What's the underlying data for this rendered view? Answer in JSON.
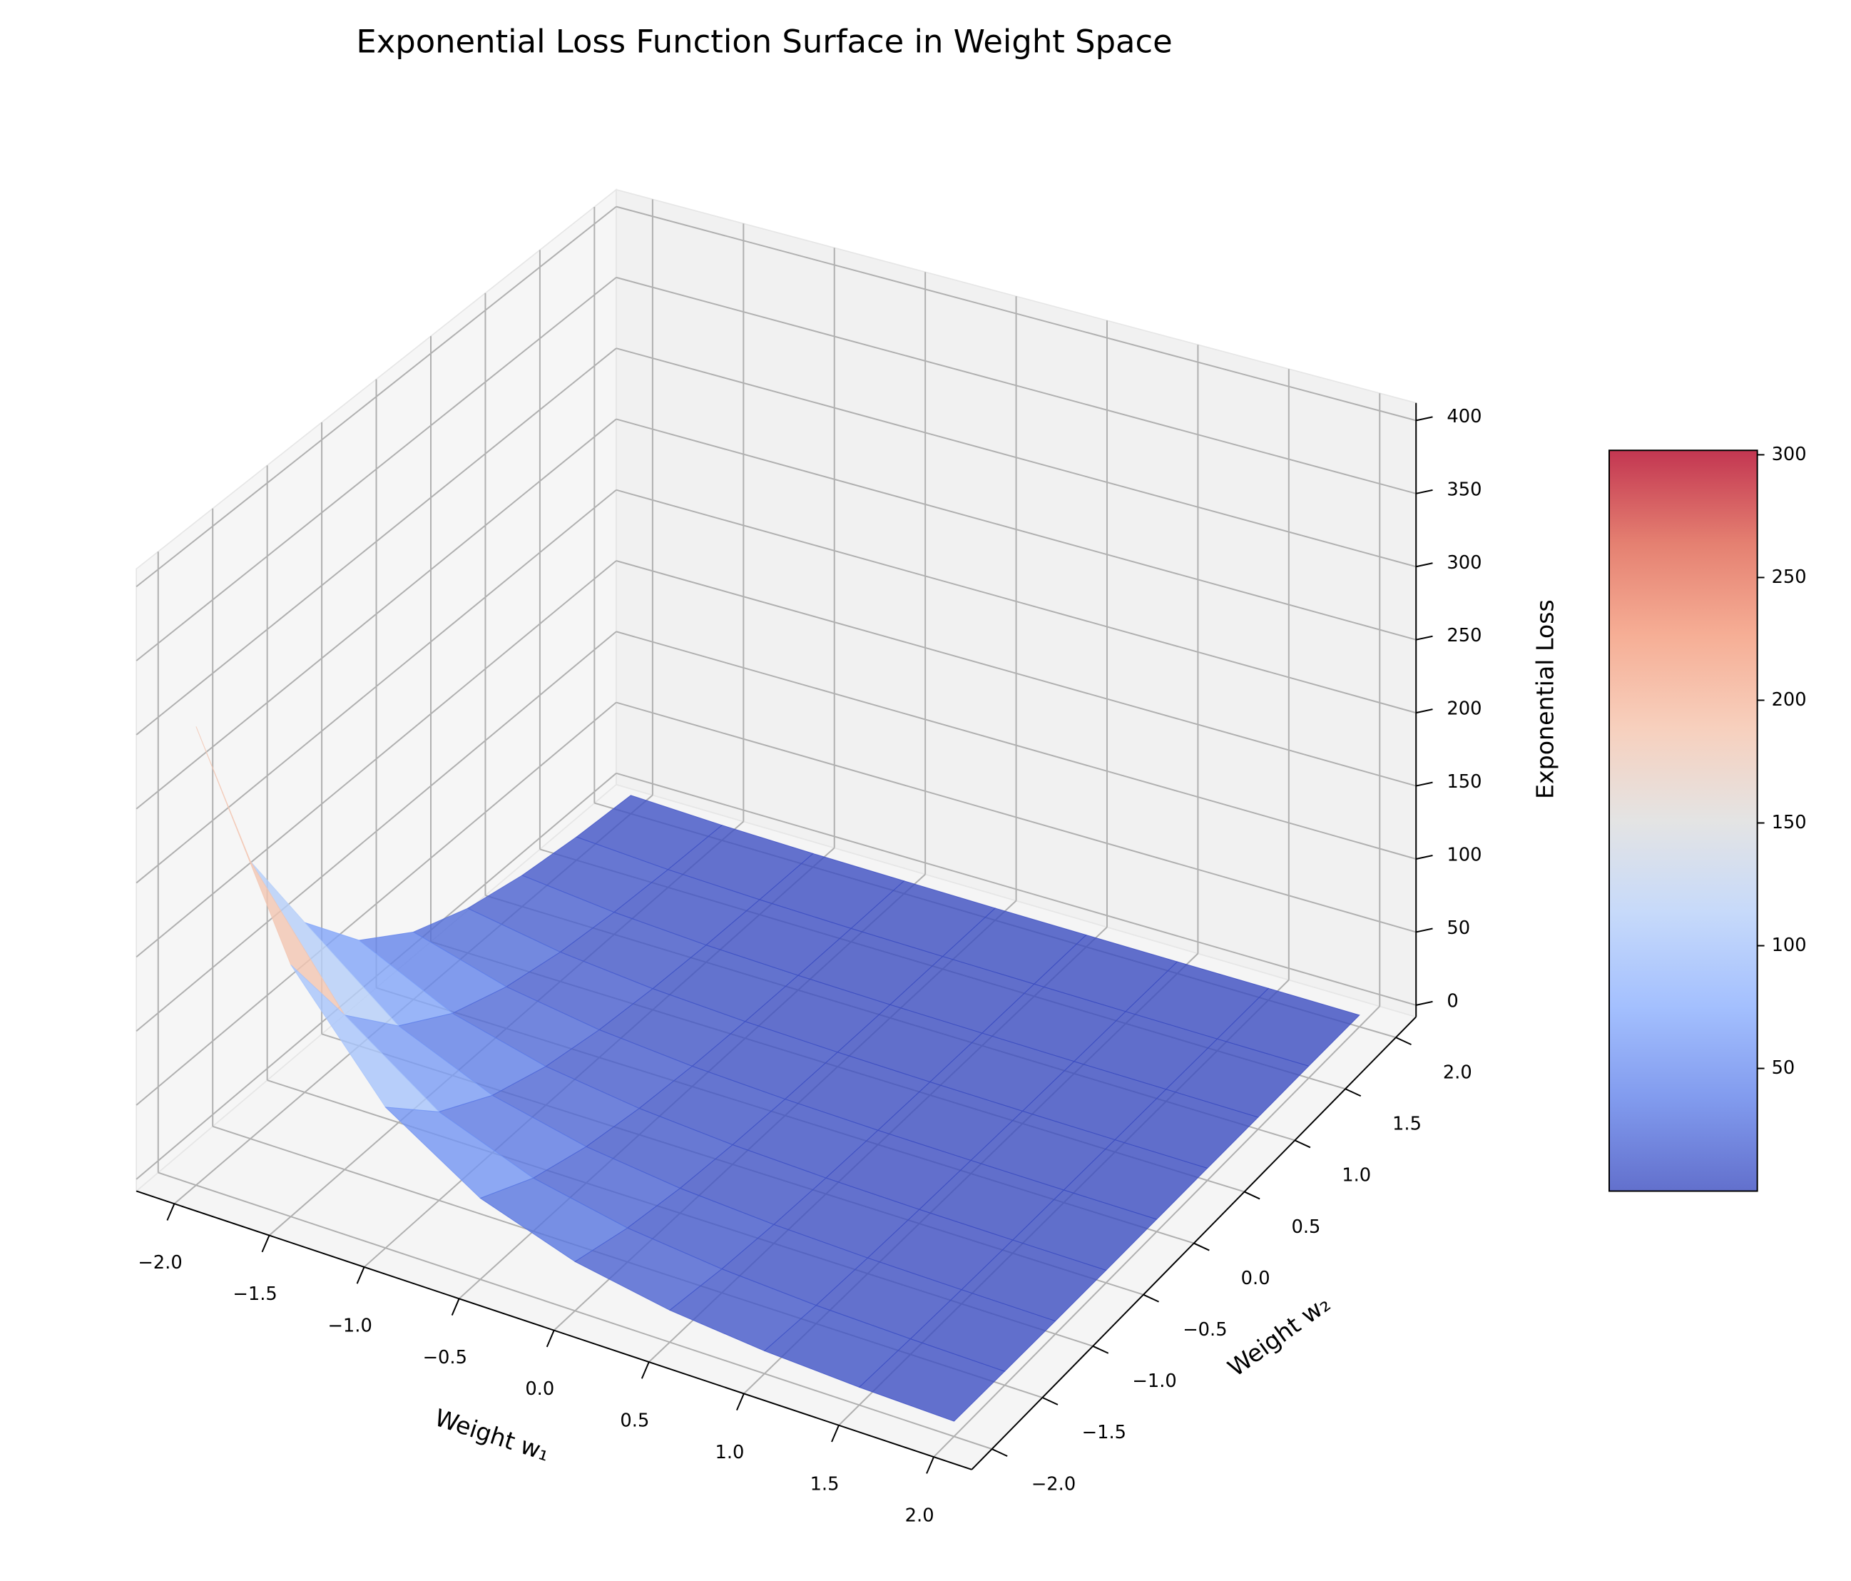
{
  "chart_data": {
    "type": "surface",
    "title": "Exponential Loss Function Surface in Weight Space",
    "x_label": "Weight w₁",
    "y_label": "Weight w₂",
    "z_label": "Exponential Loss",
    "x": [
      -2,
      -1.5,
      -1,
      -0.5,
      0,
      0.5,
      1,
      1.5,
      2
    ],
    "y": [
      -2,
      -1.5,
      -1,
      -0.5,
      0,
      0.5,
      1,
      1.5,
      2
    ],
    "z": [
      [
        301.8,
        180.3,
        107.8,
        64.4,
        38.5,
        23.0,
        13.7,
        8.2,
        4.9
      ],
      [
        161.5,
        96.5,
        57.7,
        34.5,
        20.6,
        12.3,
        7.4,
        4.4,
        2.6
      ],
      [
        86.5,
        51.7,
        30.9,
        18.4,
        11.0,
        6.6,
        3.9,
        2.4,
        1.4
      ],
      [
        46.3,
        27.7,
        16.5,
        9.9,
        5.9,
        3.5,
        2.1,
        1.3,
        0.8
      ],
      [
        24.8,
        14.8,
        8.8,
        5.3,
        3.2,
        1.9,
        1.1,
        0.7,
        0.4
      ],
      [
        13.3,
        7.9,
        4.7,
        2.8,
        1.7,
        1.0,
        0.6,
        0.4,
        0.2
      ],
      [
        7.1,
        4.2,
        2.5,
        1.5,
        0.9,
        0.5,
        0.3,
        0.2,
        0.1
      ],
      [
        3.8,
        2.3,
        1.4,
        0.8,
        0.5,
        0.3,
        0.2,
        0.1,
        0.1
      ],
      [
        2.0,
        1.2,
        0.7,
        0.4,
        0.3,
        0.2,
        0.1,
        0.1,
        0.03
      ]
    ],
    "xlim": [
      -2.2,
      2.2
    ],
    "ylim": [
      -2.2,
      2.2
    ],
    "zlim": [
      -8,
      412
    ],
    "xticks": [
      {
        "value": -2,
        "label": "−2.0"
      },
      {
        "value": -1.5,
        "label": "−1.5"
      },
      {
        "value": -1,
        "label": "−1.0"
      },
      {
        "value": -0.5,
        "label": "−0.5"
      },
      {
        "value": 0,
        "label": "0.0"
      },
      0.5,
      {
        "value": 1,
        "label": "1.0"
      },
      1.5,
      {
        "value": 2,
        "label": "2.0"
      }
    ],
    "yticks": [
      {
        "value": -2,
        "label": "−2.0"
      },
      {
        "value": -1.5,
        "label": "−1.5"
      },
      {
        "value": -1,
        "label": "−1.0"
      },
      {
        "value": -0.5,
        "label": "−0.5"
      },
      {
        "value": 0,
        "label": "0.0"
      },
      0.5,
      {
        "value": 1,
        "label": "1.0"
      },
      1.5,
      {
        "value": 2,
        "label": "2.0"
      }
    ],
    "zticks": [
      0,
      50,
      100,
      150,
      200,
      250,
      300,
      350,
      400
    ],
    "colormap": "coolwarm",
    "alpha": 0.8,
    "colorbar_ticks": [
      50,
      100,
      150,
      200,
      250,
      300
    ],
    "grid": true
  }
}
